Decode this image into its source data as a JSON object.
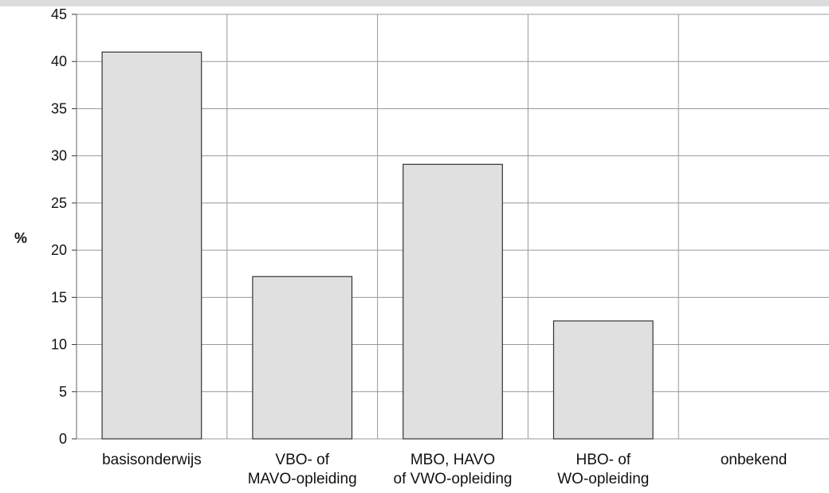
{
  "chart_data": {
    "type": "bar",
    "categories": [
      [
        "basisonderwijs"
      ],
      [
        "VBO- of",
        "MAVO-opleiding"
      ],
      [
        "MBO, HAVO",
        "of VWO-opleiding"
      ],
      [
        "HBO- of",
        "WO-opleiding"
      ],
      [
        "onbekend"
      ]
    ],
    "values": [
      41,
      17.2,
      29.1,
      12.5,
      0
    ],
    "ylabel": "%",
    "xlabel": "",
    "ylim": [
      0,
      45
    ],
    "yticks": [
      0,
      5,
      10,
      15,
      20,
      25,
      30,
      35,
      40,
      45
    ],
    "grid": true,
    "bar_color": "#e0e0e0",
    "bar_stroke": "#333333",
    "grid_color": "#999999"
  }
}
